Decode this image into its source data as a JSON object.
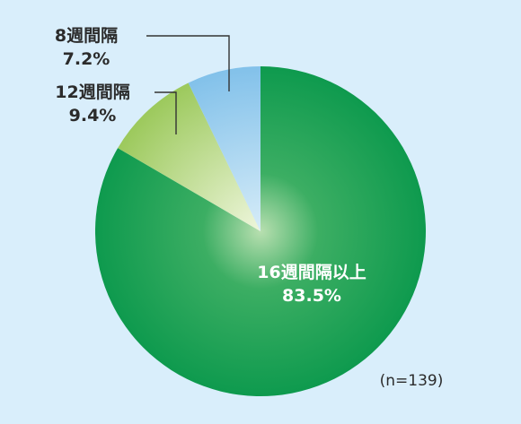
{
  "chart_data": {
    "type": "pie",
    "categories": [
      "16週間隔以上",
      "12週間隔",
      "8週間隔"
    ],
    "values": [
      83.5,
      9.4,
      7.2
    ],
    "value_labels": [
      "83.5%",
      "9.4%",
      "7.2%"
    ],
    "colors": [
      "#0f9a4f",
      "#a9cf6b",
      "#8cc5ec"
    ],
    "start": "12 o'clock, clockwise",
    "note": "(n=139)"
  }
}
